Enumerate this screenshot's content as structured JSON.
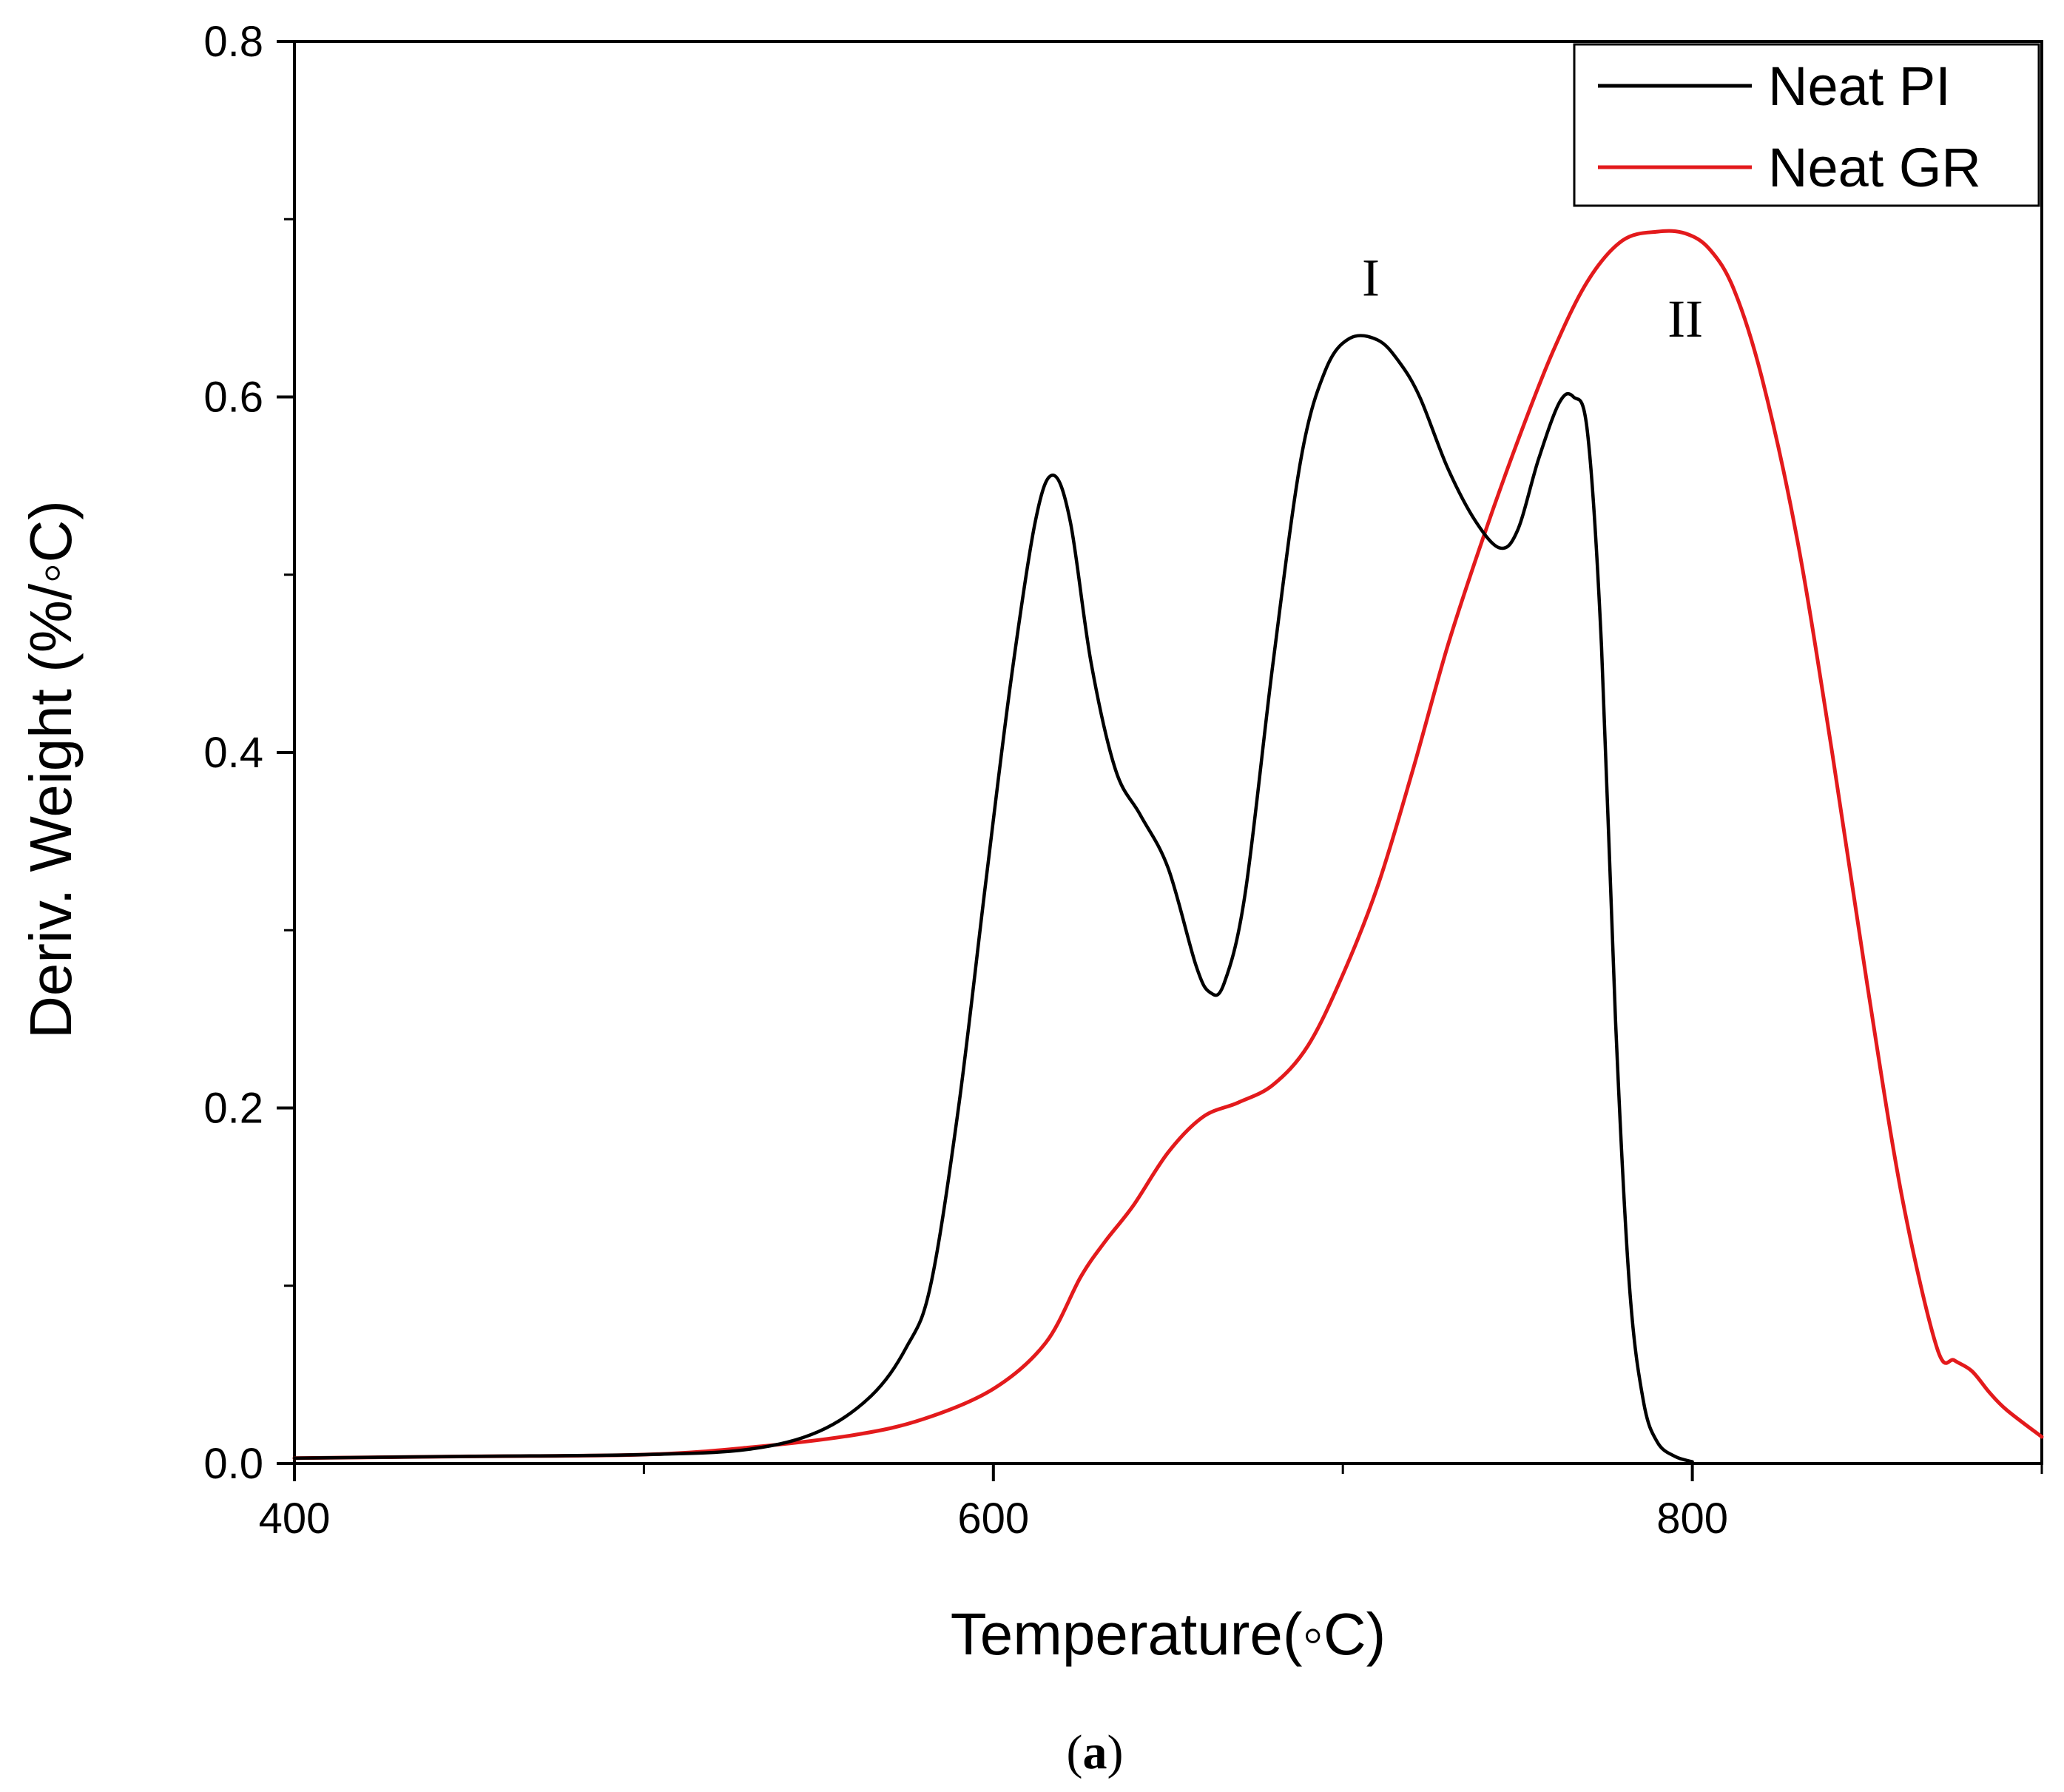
{
  "chart_data": {
    "type": "line",
    "xlabel": "Temperature(◦C)",
    "ylabel": "Deriv. Weight (%/◦C)",
    "xlim": [
      400,
      900
    ],
    "ylim": [
      0,
      0.8
    ],
    "x_ticks": [
      400,
      600,
      800
    ],
    "x_minor_ticks": [
      500,
      700,
      900
    ],
    "y_ticks": [
      0.0,
      0.2,
      0.4,
      0.6,
      0.8
    ],
    "y_minor_ticks": [
      0.1,
      0.3,
      0.5,
      0.7
    ],
    "x_tick_labels": [
      "400",
      "600",
      "800"
    ],
    "y_tick_labels": [
      "0.0",
      "0.2",
      "0.4",
      "0.6",
      "0.8"
    ],
    "grid": false,
    "legend_position": "top-right",
    "series": [
      {
        "name": "Neat PI",
        "color": "#000000",
        "x": [
          400,
          450,
          500,
          530,
          550,
          565,
          575,
          582,
          590,
          598,
          605,
          612,
          617,
          622,
          628,
          635,
          642,
          650,
          658,
          662,
          666,
          672,
          680,
          688,
          695,
          702,
          710,
          716,
          722,
          730,
          738,
          745,
          750,
          756,
          762,
          766,
          770,
          774,
          778,
          782,
          786,
          790,
          795,
          800
        ],
        "values": [
          0.003,
          0.004,
          0.005,
          0.008,
          0.018,
          0.038,
          0.065,
          0.1,
          0.2,
          0.33,
          0.44,
          0.53,
          0.556,
          0.53,
          0.45,
          0.39,
          0.365,
          0.335,
          0.28,
          0.265,
          0.27,
          0.32,
          0.45,
          0.565,
          0.615,
          0.633,
          0.632,
          0.62,
          0.6,
          0.56,
          0.53,
          0.515,
          0.525,
          0.565,
          0.597,
          0.6,
          0.58,
          0.46,
          0.25,
          0.1,
          0.035,
          0.012,
          0.004,
          0.001
        ]
      },
      {
        "name": "Neat GR",
        "color": "#e31a1c",
        "x": [
          400,
          450,
          500,
          530,
          560,
          580,
          600,
          615,
          625,
          632,
          640,
          650,
          660,
          670,
          680,
          690,
          700,
          710,
          720,
          730,
          740,
          750,
          760,
          770,
          780,
          790,
          798,
          805,
          812,
          820,
          830,
          840,
          850,
          860,
          870,
          875,
          880,
          885,
          890,
          900
        ],
        "values": [
          0.003,
          0.004,
          0.005,
          0.009,
          0.016,
          0.025,
          0.042,
          0.068,
          0.105,
          0.125,
          0.145,
          0.175,
          0.195,
          0.203,
          0.213,
          0.235,
          0.275,
          0.325,
          0.39,
          0.46,
          0.52,
          0.575,
          0.625,
          0.665,
          0.688,
          0.693,
          0.692,
          0.683,
          0.66,
          0.61,
          0.52,
          0.4,
          0.27,
          0.15,
          0.065,
          0.058,
          0.052,
          0.04,
          0.03,
          0.015
        ]
      }
    ],
    "annotations": [
      {
        "text": "I",
        "x": 708,
        "y": 0.657
      },
      {
        "text": "II",
        "x": 798,
        "y": 0.634
      }
    ]
  },
  "caption": {
    "open": "(",
    "label": "a",
    "close": ")"
  }
}
